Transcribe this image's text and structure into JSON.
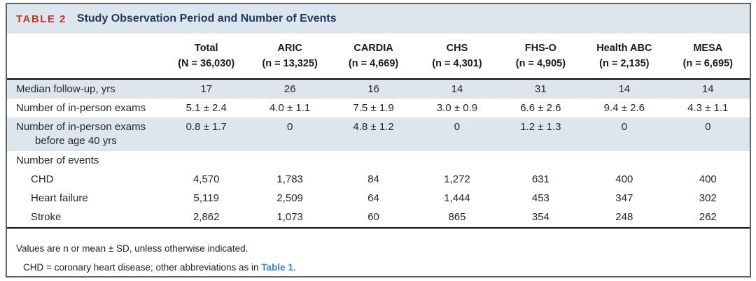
{
  "table": {
    "label": "TABLE 2",
    "title": "Study Observation Period and Number of Events",
    "columns": [
      {
        "name": "Total",
        "n": "(N = 36,030)"
      },
      {
        "name": "ARIC",
        "n": "(n = 13,325)"
      },
      {
        "name": "CARDIA",
        "n": "(n = 4,669)"
      },
      {
        "name": "CHS",
        "n": "(n = 4,301)"
      },
      {
        "name": "FHS-O",
        "n": "(n = 4,905)"
      },
      {
        "name": "Health ABC",
        "n": "(n = 2,135)"
      },
      {
        "name": "MESA",
        "n": "(n = 6,695)"
      }
    ],
    "rows": [
      {
        "label": "Median follow-up, yrs",
        "shaded": true,
        "indent": false,
        "values": [
          "17",
          "26",
          "16",
          "14",
          "31",
          "14",
          "14"
        ]
      },
      {
        "label": "Number of in-person exams",
        "shaded": false,
        "indent": false,
        "values": [
          "5.1 ± 2.4",
          "4.0 ± 1.1",
          "7.5 ± 1.9",
          "3.0 ± 0.9",
          "6.6 ± 2.6",
          "9.4 ± 2.6",
          "4.3 ± 1.1"
        ]
      },
      {
        "label": "Number of in-person exams",
        "label_line2": "before age 40 yrs",
        "shaded": true,
        "indent": false,
        "values": [
          "0.8 ± 1.7",
          "0",
          "4.8 ± 1.2",
          "0",
          "1.2 ± 1.3",
          "0",
          "0"
        ]
      },
      {
        "label": "Number of events",
        "shaded": false,
        "indent": false,
        "section": true,
        "values": [
          "",
          "",
          "",
          "",
          "",
          "",
          ""
        ]
      },
      {
        "label": "CHD",
        "shaded": false,
        "indent": true,
        "values": [
          "4,570",
          "1,783",
          "84",
          "1,272",
          "631",
          "400",
          "400"
        ]
      },
      {
        "label": "Heart failure",
        "shaded": false,
        "indent": true,
        "values": [
          "5,119",
          "2,509",
          "64",
          "1,444",
          "453",
          "347",
          "302"
        ]
      },
      {
        "label": "Stroke",
        "shaded": false,
        "indent": true,
        "values": [
          "2,862",
          "1,073",
          "60",
          "865",
          "354",
          "248",
          "262"
        ]
      }
    ],
    "footnotes": {
      "line1": "Values are n or mean ± SD, unless otherwise indicated.",
      "line2_text": "CHD = coronary heart disease; other abbreviations as in ",
      "line2_link": "Table 1",
      "line2_suffix": "."
    },
    "colors": {
      "band": "#dde6ed",
      "label_red": "#c0362c",
      "title_navy": "#1e3a5f",
      "link_blue": "#3a87c8"
    }
  }
}
